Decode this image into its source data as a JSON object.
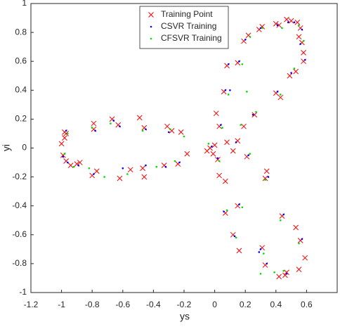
{
  "chart_data": {
    "type": "scatter",
    "xlabel": "ys",
    "ylabel": "yi",
    "xlim": [
      -1.2,
      0.8
    ],
    "ylim": [
      -1,
      1
    ],
    "xticks": [
      -1.2,
      -1,
      -0.8,
      -0.6,
      -0.4,
      -0.2,
      0,
      0.2,
      0.4,
      0.6
    ],
    "yticks": [
      -1,
      -0.8,
      -0.6,
      -0.4,
      -0.2,
      0,
      0.2,
      0.4,
      0.6,
      0.8,
      1
    ],
    "legend": "top-center",
    "series": [
      {
        "name": "Training Point",
        "color": "#ff0000",
        "marker": "x",
        "x": [
          -0.98,
          -0.97,
          -0.79,
          -0.79,
          -0.67,
          -0.63,
          -0.49,
          -0.46,
          -0.31,
          -0.28,
          -0.22,
          -1.0,
          -0.98,
          -0.99,
          -0.97,
          -0.94,
          -0.9,
          -0.88,
          -0.8,
          -0.77,
          -0.62,
          -0.55,
          -0.47,
          -0.46,
          -0.33,
          -0.24,
          -0.18,
          -0.05,
          -0.03,
          0.0,
          -0.01,
          0.02,
          0.01,
          0.03,
          0.06,
          0.08,
          0.15,
          0.19,
          0.22,
          0.29,
          0.31,
          0.4,
          0.42,
          0.47,
          0.5,
          0.54,
          0.56,
          0.55,
          0.57,
          0.58,
          0.58,
          0.53,
          0.49,
          0.4,
          0.43,
          0.26,
          0.19,
          0.15,
          0.12,
          0.08,
          0.21,
          0.03,
          0.07,
          0.34,
          0.33,
          0.07,
          0.15,
          0.12,
          0.16,
          0.31,
          0.44,
          0.53,
          0.56,
          0.59,
          0.55,
          0.46,
          0.42,
          0.33,
          0.47
        ],
        "y": [
          0.11,
          0.1,
          0.17,
          0.13,
          0.2,
          0.16,
          0.21,
          0.14,
          0.15,
          0.12,
          0.11,
          0.03,
          0.07,
          -0.05,
          -0.09,
          -0.12,
          -0.11,
          -0.1,
          -0.19,
          -0.16,
          -0.21,
          -0.15,
          -0.14,
          -0.2,
          -0.12,
          -0.11,
          -0.04,
          -0.02,
          0.0,
          0.02,
          -0.04,
          -0.08,
          0.24,
          0.15,
          0.39,
          0.57,
          0.59,
          0.74,
          0.78,
          0.82,
          0.84,
          0.86,
          0.85,
          0.89,
          0.88,
          0.87,
          0.83,
          0.77,
          0.73,
          0.66,
          0.6,
          0.53,
          0.5,
          0.38,
          0.35,
          0.23,
          0.15,
          0.05,
          -0.02,
          0.04,
          -0.06,
          -0.19,
          -0.23,
          -0.16,
          -0.21,
          -0.45,
          -0.4,
          -0.6,
          -0.71,
          -0.69,
          -0.47,
          -0.55,
          -0.64,
          -0.76,
          -0.84,
          -0.88,
          -0.89,
          -0.81,
          -0.86
        ]
      },
      {
        "name": "CSVR Training",
        "color": "#0000ff",
        "marker": "dot",
        "x": [
          -0.97,
          -0.78,
          -0.66,
          -0.62,
          -0.45,
          -0.3,
          -0.99,
          -0.96,
          -0.89,
          -0.79,
          -0.6,
          -0.45,
          -0.32,
          -0.23,
          -0.02,
          0.02,
          0.04,
          0.07,
          0.09,
          0.16,
          0.2,
          0.3,
          0.41,
          0.48,
          0.52,
          0.57,
          0.56,
          0.59,
          0.5,
          0.41,
          0.25,
          0.14,
          0.22,
          0.35,
          0.06,
          0.16,
          0.13,
          0.3,
          0.45,
          0.57,
          0.47,
          0.34,
          0.1,
          0.29
        ],
        "y": [
          0.12,
          0.12,
          0.19,
          0.15,
          0.13,
          0.11,
          -0.06,
          -0.1,
          -0.12,
          -0.18,
          -0.14,
          -0.12,
          -0.13,
          -0.1,
          0.01,
          -0.07,
          0.16,
          0.4,
          0.58,
          0.6,
          0.75,
          0.83,
          0.85,
          0.87,
          0.87,
          0.82,
          0.72,
          0.61,
          0.52,
          0.39,
          0.23,
          0.04,
          -0.05,
          -0.2,
          -0.44,
          -0.39,
          -0.61,
          -0.7,
          -0.46,
          -0.63,
          -0.87,
          -0.8,
          0.4,
          -0.72
        ]
      },
      {
        "name": "CFSVR Training",
        "color": "#00dd00",
        "marker": "dot",
        "x": [
          -0.96,
          -0.8,
          -0.68,
          -0.47,
          -0.29,
          -0.2,
          -0.98,
          -0.92,
          -0.82,
          -0.72,
          -0.57,
          -0.38,
          -0.26,
          -0.04,
          0.03,
          0.05,
          0.09,
          0.18,
          0.23,
          0.31,
          0.44,
          0.55,
          0.58,
          0.52,
          0.43,
          0.27,
          0.17,
          0.23,
          0.33,
          0.08,
          0.18,
          0.14,
          0.32,
          0.43,
          0.55,
          0.45,
          0.39,
          0.3,
          0.21
        ],
        "y": [
          0.1,
          0.14,
          0.17,
          0.12,
          0.13,
          0.08,
          -0.04,
          -0.13,
          -0.14,
          -0.2,
          -0.18,
          -0.13,
          -0.09,
          0.03,
          -0.09,
          0.14,
          0.37,
          0.58,
          0.77,
          0.83,
          0.83,
          0.85,
          0.74,
          0.55,
          0.37,
          0.25,
          0.16,
          -0.04,
          -0.22,
          -0.43,
          -0.41,
          -0.62,
          -0.73,
          -0.5,
          -0.66,
          -0.85,
          -0.86,
          -0.87,
          0.39
        ]
      }
    ]
  }
}
